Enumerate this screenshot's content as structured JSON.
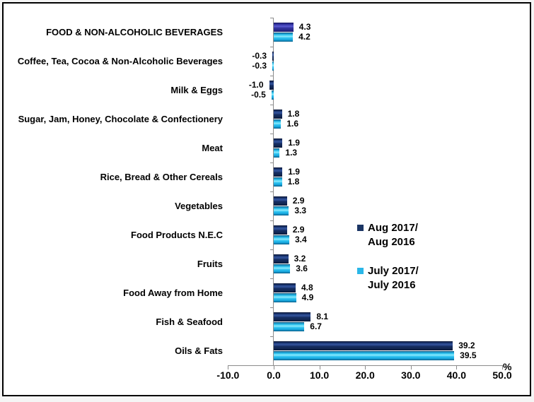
{
  "chart_data": {
    "type": "bar",
    "orientation": "horizontal",
    "title": "",
    "categories": [
      "FOOD & NON-ALCOHOLIC BEVERAGES",
      "Coffee, Tea, Cocoa & Non-Alcoholic Beverages",
      "Milk & Eggs",
      "Sugar, Jam, Honey, Chocolate & Confectionery",
      "Meat",
      "Rice, Bread & Other Cereals",
      "Vegetables",
      "Food Products N.E.C",
      "Fruits",
      "Food Away from Home",
      "Fish & Seafood",
      "Oils & Fats"
    ],
    "series": [
      {
        "name": "Aug 2017/ Aug 2016",
        "values": [
          4.3,
          -0.3,
          -1.0,
          1.8,
          1.9,
          1.9,
          2.9,
          2.9,
          3.2,
          4.8,
          8.1,
          39.2
        ]
      },
      {
        "name": "July 2017/ July 2016",
        "values": [
          4.2,
          -0.3,
          -0.5,
          1.6,
          1.3,
          1.8,
          3.3,
          3.4,
          3.6,
          4.9,
          6.7,
          39.5
        ]
      }
    ],
    "xlabel": "%",
    "xlim": [
      -10,
      50
    ],
    "x_ticks": [
      -10,
      0,
      10,
      20,
      30,
      40,
      50
    ],
    "grid": false,
    "legend_position": "right-middle",
    "legend": [
      {
        "lines": [
          "Aug 2017/",
          "Aug 2016"
        ],
        "color": "#1b3564"
      },
      {
        "lines": [
          "July 2017/",
          "July 2016"
        ],
        "color": "#2ab7e8"
      }
    ],
    "colors": {
      "aug": "#16305f",
      "aug_first_row": "#3333ac",
      "july": "#22bdee",
      "axis": "#8c8c8c",
      "text": "#000000"
    }
  }
}
